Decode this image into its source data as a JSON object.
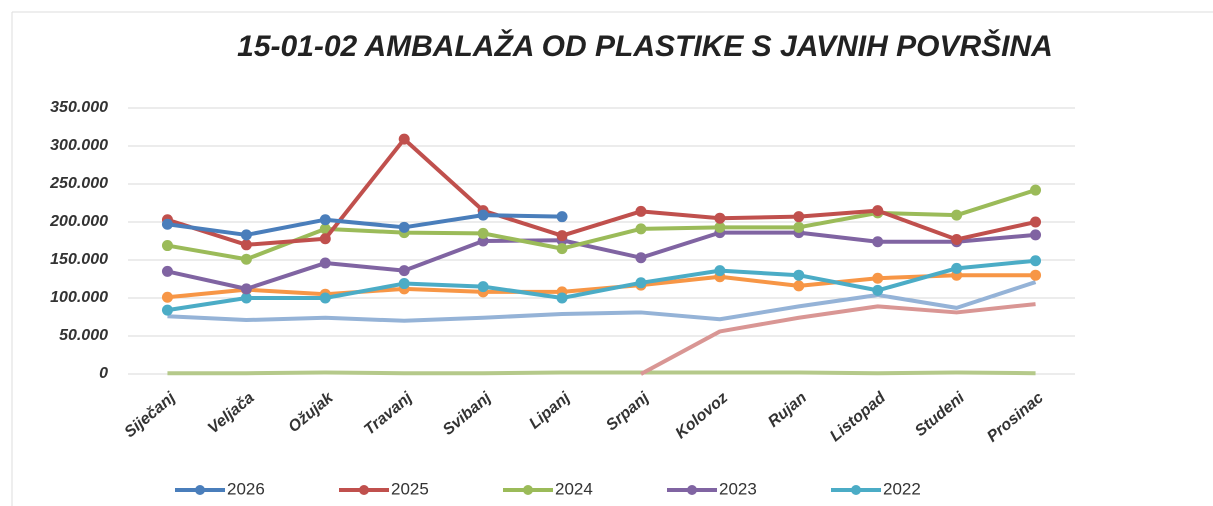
{
  "chart_data": {
    "type": "line",
    "title": "15-01-02 AMBALAŽA OD PLASTIKE S JAVNIH POVRŠINA",
    "categories": [
      "Siječanj",
      "Veljača",
      "Ožujak",
      "Travanj",
      "Svibanj",
      "Lipanj",
      "Srpanj",
      "Kolovoz",
      "Rujan",
      "Listopad",
      "Studeni",
      "Prosinac"
    ],
    "ylim": [
      0,
      350000
    ],
    "yticks": [
      0,
      {
        "value": 50000,
        "label": "50.000"
      },
      {
        "value": 100000,
        "label": "100.000"
      },
      {
        "value": 150000,
        "label": "150.000"
      },
      {
        "value": 200000,
        "label": "200.000"
      },
      {
        "value": 250000,
        "label": "250.000"
      },
      {
        "value": 300000,
        "label": "300.000"
      },
      {
        "value": 350000,
        "label": "350.000"
      }
    ],
    "grid": true,
    "series": [
      {
        "color": "#b5c98a",
        "markers": false,
        "values": [
          1000,
          1000,
          2000,
          1000,
          1000,
          2000,
          2000,
          2000,
          2000,
          1000,
          2000,
          1000
        ]
      },
      {
        "color": "#d99694",
        "markers": false,
        "values": [
          null,
          null,
          null,
          null,
          null,
          null,
          0,
          56000,
          74000,
          89000,
          81000,
          92000
        ]
      },
      {
        "color": "#95b3d7",
        "markers": false,
        "values": [
          76000,
          71000,
          74000,
          70000,
          74000,
          79000,
          81000,
          72000,
          89000,
          104000,
          87000,
          121000
        ]
      },
      {
        "color": "#f79646",
        "markers": true,
        "values": [
          101000,
          111000,
          105000,
          112000,
          108000,
          108000,
          117000,
          128000,
          116000,
          126000,
          130000,
          130000
        ]
      },
      {
        "name": "2022",
        "color": "#4bacc6",
        "markers": true,
        "values": [
          84000,
          100000,
          100000,
          119000,
          115000,
          100000,
          120000,
          136000,
          130000,
          110000,
          139000,
          149000
        ]
      },
      {
        "name": "2023",
        "color": "#8064a2",
        "markers": true,
        "values": [
          135000,
          112000,
          146000,
          136000,
          175000,
          176000,
          153000,
          186000,
          186000,
          174000,
          174000,
          183000
        ]
      },
      {
        "name": "2024",
        "color": "#9bbb59",
        "markers": true,
        "values": [
          169000,
          151000,
          191000,
          186000,
          185000,
          165000,
          191000,
          193000,
          193000,
          212000,
          209000,
          242000
        ]
      },
      {
        "name": "2025",
        "color": "#c0504d",
        "markers": true,
        "values": [
          203000,
          170000,
          178000,
          309000,
          215000,
          182000,
          214000,
          205000,
          207000,
          215000,
          177000,
          200000
        ]
      },
      {
        "name": "2026",
        "color": "#4a7ebb",
        "markers": true,
        "values": [
          197000,
          183000,
          203000,
          193000,
          209000,
          207000,
          null,
          null,
          null,
          null,
          null,
          null
        ]
      }
    ]
  }
}
